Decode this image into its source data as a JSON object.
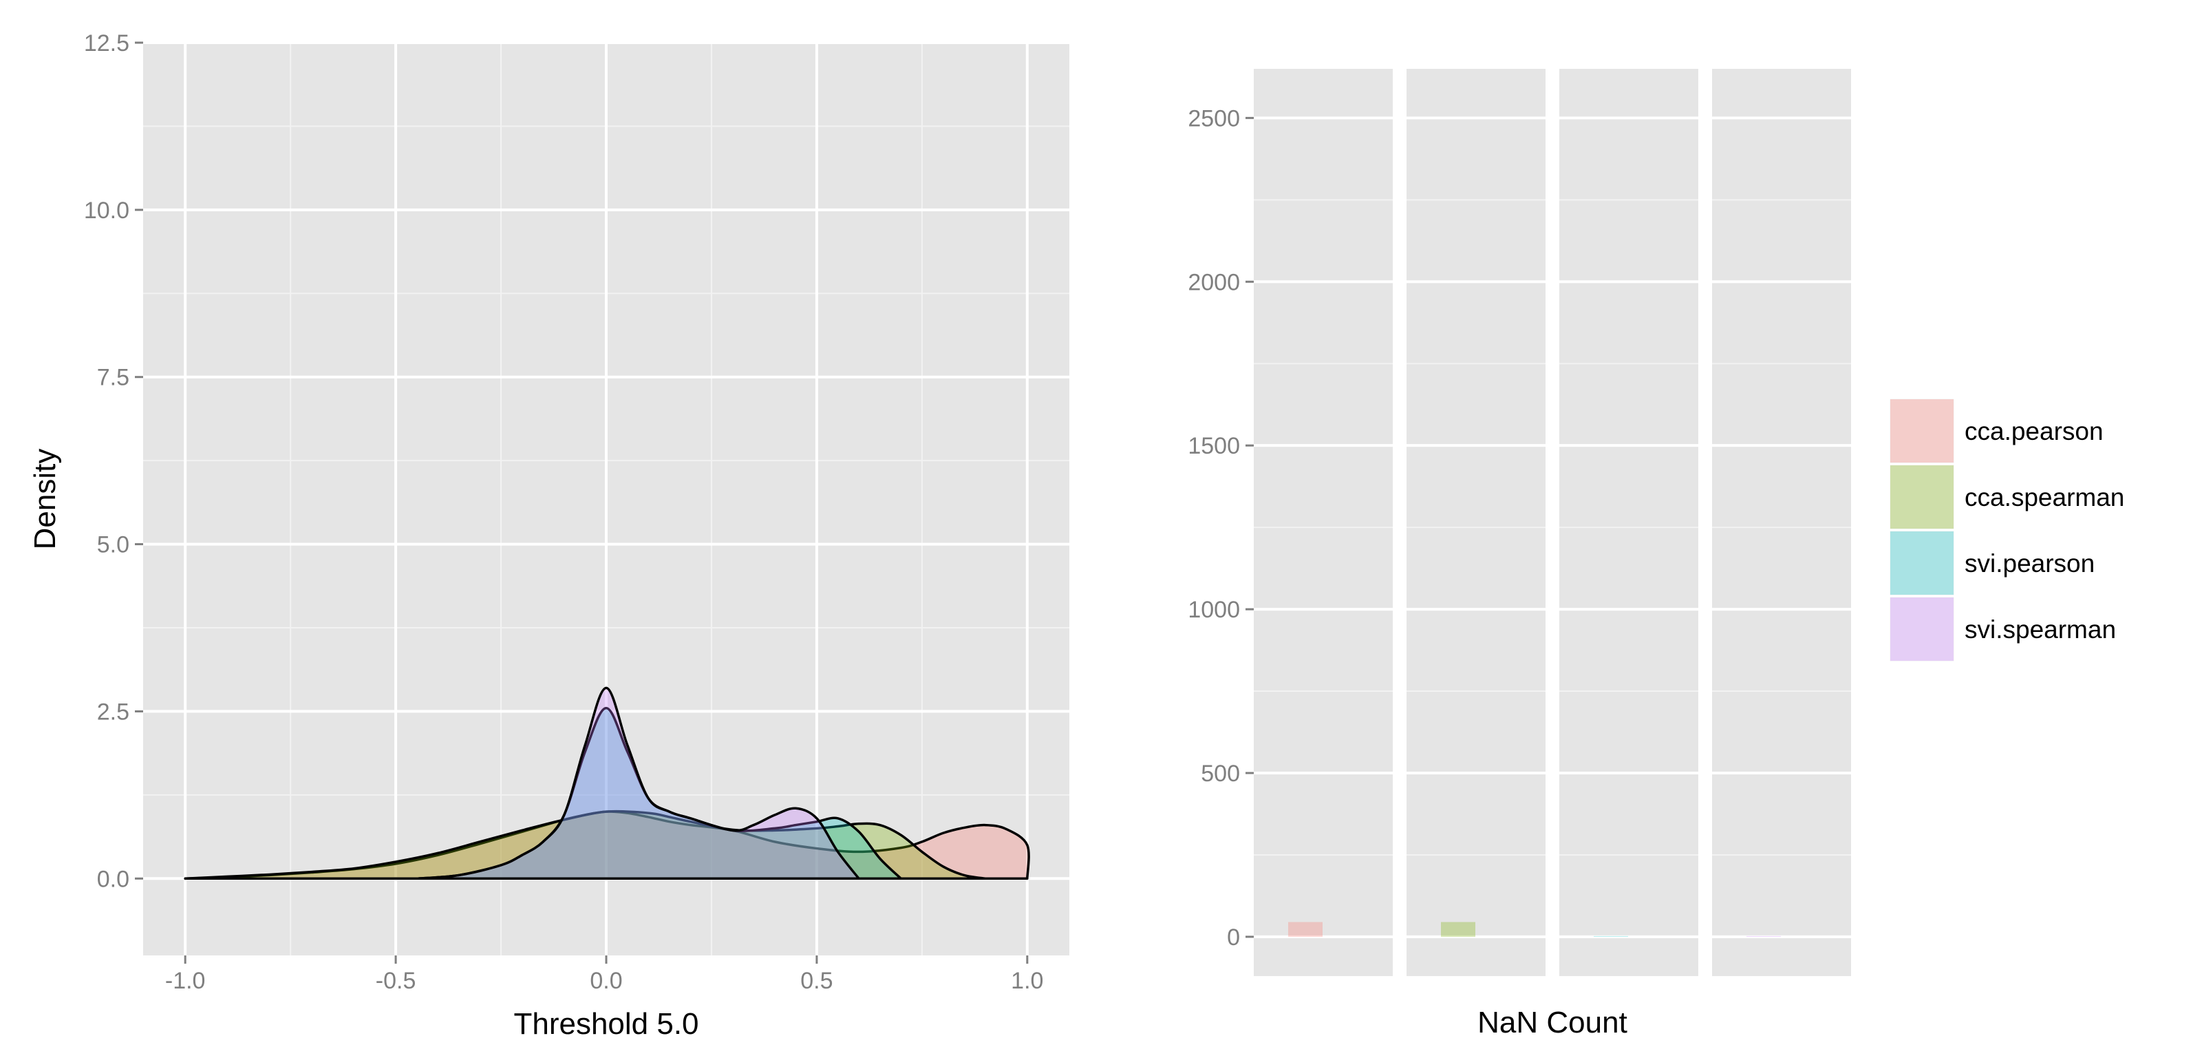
{
  "chart_data": [
    {
      "type": "area",
      "title": "",
      "xlabel": "Threshold 5.0",
      "ylabel": "Density",
      "xlim": [
        -1.1,
        1.1
      ],
      "ylim": [
        -1.15,
        12.5
      ],
      "x_ticks": [
        -1.0,
        -0.5,
        0.0,
        0.5,
        1.0
      ],
      "x_tick_labels": [
        "-1.0",
        "-0.5",
        "0.0",
        "0.5",
        "1.0"
      ],
      "y_ticks": [
        0.0,
        2.5,
        5.0,
        7.5,
        10.0,
        12.5
      ],
      "y_tick_labels": [
        "0.0",
        "2.5",
        "5.0",
        "7.5",
        "10.0",
        "12.5"
      ],
      "grid": true,
      "series": [
        {
          "name": "cca.pearson",
          "color": "#F8766D",
          "x": [
            -1.0,
            -0.9,
            -0.8,
            -0.7,
            -0.6,
            -0.5,
            -0.4,
            -0.3,
            -0.2,
            -0.1,
            -0.05,
            0.0,
            0.05,
            0.1,
            0.15,
            0.2,
            0.3,
            0.4,
            0.5,
            0.6,
            0.7,
            0.75,
            0.8,
            0.85,
            0.9,
            0.95,
            1.0,
            1.0
          ],
          "values": [
            0.0,
            0.02,
            0.05,
            0.09,
            0.14,
            0.22,
            0.35,
            0.52,
            0.7,
            0.88,
            0.95,
            1.0,
            0.98,
            0.92,
            0.85,
            0.8,
            0.72,
            0.55,
            0.45,
            0.4,
            0.46,
            0.55,
            0.68,
            0.76,
            0.8,
            0.74,
            0.5,
            0.0
          ]
        },
        {
          "name": "cca.spearman",
          "color": "#7CAE00",
          "x": [
            -1.0,
            -0.9,
            -0.8,
            -0.7,
            -0.6,
            -0.5,
            -0.4,
            -0.3,
            -0.2,
            -0.1,
            0.0,
            0.1,
            0.15,
            0.2,
            0.3,
            0.4,
            0.5,
            0.55,
            0.6,
            0.65,
            0.7,
            0.75,
            0.8,
            0.85,
            0.9
          ],
          "values": [
            0.0,
            0.03,
            0.06,
            0.1,
            0.15,
            0.25,
            0.38,
            0.55,
            0.72,
            0.88,
            1.0,
            0.98,
            0.92,
            0.85,
            0.73,
            0.72,
            0.75,
            0.78,
            0.82,
            0.8,
            0.65,
            0.4,
            0.18,
            0.05,
            0.0
          ]
        },
        {
          "name": "svi.pearson",
          "color": "#00BFC4",
          "x": [
            -0.45,
            -0.35,
            -0.25,
            -0.2,
            -0.15,
            -0.1,
            -0.05,
            0.0,
            0.05,
            0.1,
            0.15,
            0.2,
            0.3,
            0.4,
            0.45,
            0.5,
            0.55,
            0.6,
            0.65,
            0.7
          ],
          "values": [
            0.0,
            0.05,
            0.2,
            0.35,
            0.55,
            0.95,
            1.9,
            2.55,
            1.9,
            1.2,
            1.0,
            0.9,
            0.72,
            0.75,
            0.8,
            0.85,
            0.9,
            0.7,
            0.3,
            0.0
          ]
        },
        {
          "name": "svi.spearman",
          "color": "#C77CFF",
          "x": [
            -0.45,
            -0.35,
            -0.25,
            -0.2,
            -0.15,
            -0.1,
            -0.05,
            0.0,
            0.05,
            0.1,
            0.15,
            0.2,
            0.3,
            0.35,
            0.4,
            0.45,
            0.5,
            0.55,
            0.6
          ],
          "values": [
            0.0,
            0.05,
            0.2,
            0.35,
            0.55,
            0.95,
            2.0,
            2.85,
            2.0,
            1.2,
            1.0,
            0.9,
            0.72,
            0.8,
            0.95,
            1.05,
            0.9,
            0.4,
            0.0
          ]
        }
      ]
    },
    {
      "type": "bar",
      "title": "",
      "xlabel": "NaN Count",
      "ylabel": "",
      "ylim": [
        -120,
        2650
      ],
      "y_ticks": [
        0,
        500,
        1000,
        1500,
        2000,
        2500
      ],
      "y_tick_labels": [
        "0",
        "500",
        "1000",
        "1500",
        "2000",
        "2500"
      ],
      "grid": true,
      "legend_position": "right",
      "series": [
        {
          "name": "cca.pearson",
          "color": "#F8766D",
          "values": [
            45
          ]
        },
        {
          "name": "cca.spearman",
          "color": "#7CAE00",
          "values": [
            45
          ]
        },
        {
          "name": "svi.pearson",
          "color": "#00BFC4",
          "values": [
            0
          ]
        },
        {
          "name": "svi.spearman",
          "color": "#C77CFF",
          "values": [
            0
          ]
        }
      ]
    }
  ]
}
